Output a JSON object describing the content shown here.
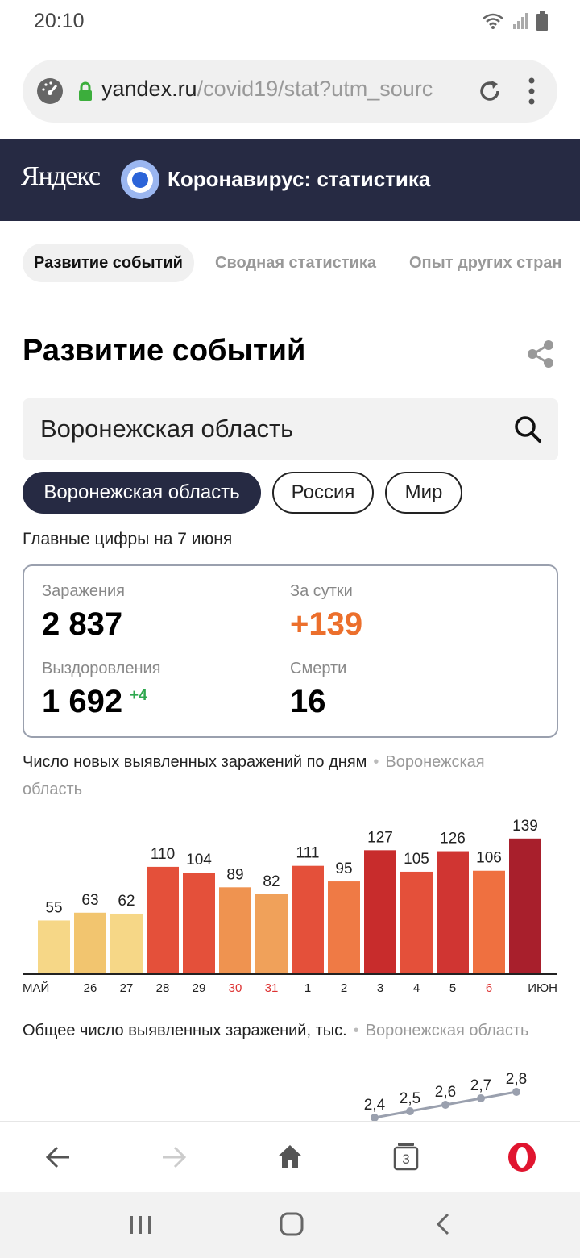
{
  "status_bar": {
    "time": "20:10"
  },
  "browser": {
    "url_host": "yandex.ru",
    "url_path": "/covid19/stat?utm_sourc",
    "tabs_count": "3"
  },
  "header": {
    "logo": "Яндекс",
    "title": "Коронавирус: статистика"
  },
  "tabs": [
    {
      "label": "Развитие событий"
    },
    {
      "label": "Сводная статистика"
    },
    {
      "label": "Опыт других стран"
    }
  ],
  "page": {
    "heading": "Развитие событий",
    "search_value": "Воронежская область",
    "region_pills": [
      "Воронежская область",
      "Россия",
      "Мир"
    ],
    "main_figures_label": "Главные цифры на 7 июня"
  },
  "stats": {
    "infections_label": "Заражения",
    "infections_value": "2 837",
    "day_label": "За сутки",
    "day_value": "+139",
    "recovered_label": "Выздоровления",
    "recovered_value": "1 692",
    "recovered_delta": "+4",
    "deaths_label": "Смерти",
    "deaths_value": "16"
  },
  "chart1_title": {
    "text": "Число новых выявленных заражений по дням",
    "region": "Воронежская область"
  },
  "chart2_title": {
    "text": "Общее число выявленных заражений, тыс.",
    "region": "Воронежская область"
  },
  "chart_data": [
    {
      "type": "bar",
      "categories": [
        "МАЙ",
        "26",
        "27",
        "28",
        "29",
        "30",
        "31",
        "1",
        "2",
        "3",
        "4",
        "5",
        "6",
        "ИЮН"
      ],
      "values": [
        55,
        63,
        62,
        110,
        104,
        89,
        82,
        111,
        95,
        127,
        105,
        126,
        106,
        139
      ],
      "red_ticks": [
        "30",
        "31",
        "6"
      ],
      "colors": [
        "#f6d787",
        "#f2c56f",
        "#f6d787",
        "#e4503a",
        "#e4503a",
        "#ef9350",
        "#f0a15a",
        "#e4503a",
        "#ef7a45",
        "#c82c2c",
        "#e4503a",
        "#d03532",
        "#ef7040",
        "#a81f2c"
      ],
      "ylim": [
        0,
        150
      ]
    },
    {
      "type": "line",
      "visible_labels": [
        "2,4",
        "2,5",
        "2,6",
        "2,7",
        "2,8"
      ],
      "values": [
        2.4,
        2.5,
        2.6,
        2.7,
        2.8
      ]
    }
  ]
}
